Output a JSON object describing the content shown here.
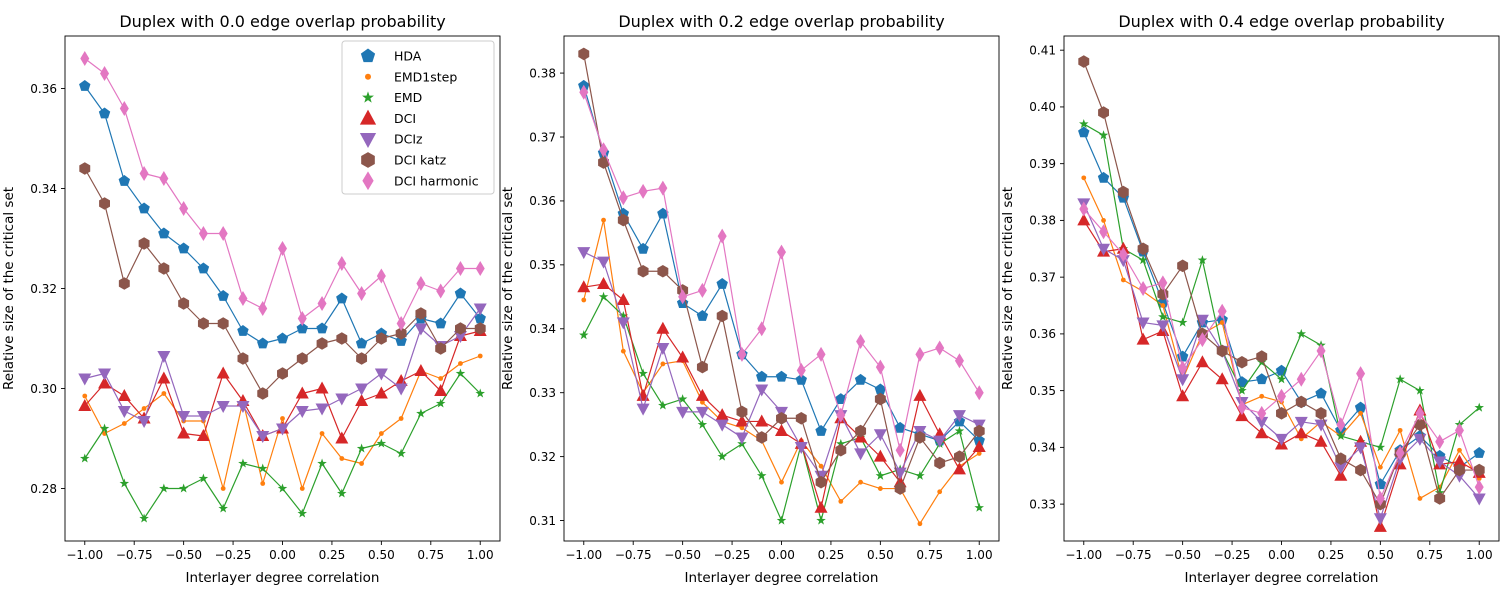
{
  "colors": {
    "HDA": "#1f77b4",
    "EMD1step": "#ff7f0e",
    "EMD": "#2ca02c",
    "DCI": "#d62728",
    "DCIz": "#9467bd",
    "DCI katz": "#8c564b",
    "DCI harmonic": "#e377c2"
  },
  "markers": {
    "HDA": "pentagon",
    "EMD1step": "dot",
    "EMD": "star",
    "DCI": "triangle-up",
    "DCIz": "triangle-down",
    "DCI katz": "hexagon",
    "DCI harmonic": "thin-diamond"
  },
  "chart_data": [
    {
      "type": "line",
      "title": "Duplex with 0.0 edge overlap probability",
      "xlabel": "Interlayer degree correlation",
      "ylabel": "Relative size of the critical set",
      "xlim": [
        -1.1,
        1.1
      ],
      "ylim": [
        0.2695,
        0.3705
      ],
      "xticks": [
        -1.0,
        -0.75,
        -0.5,
        -0.25,
        0.0,
        0.25,
        0.5,
        0.75,
        1.0
      ],
      "xtick_labels": [
        "−1.00",
        "−0.75",
        "−0.50",
        "−0.25",
        "0.00",
        "0.25",
        "0.50",
        "0.75",
        "1.00"
      ],
      "yticks": [
        0.28,
        0.3,
        0.32,
        0.34,
        0.36
      ],
      "ytick_labels": [
        "0.28",
        "0.30",
        "0.32",
        "0.34",
        "0.36"
      ],
      "legend": "upper right",
      "x": [
        -1.0,
        -0.9,
        -0.8,
        -0.7,
        -0.6,
        -0.5,
        -0.4,
        -0.3,
        -0.2,
        -0.1,
        0.0,
        0.1,
        0.2,
        0.3,
        0.4,
        0.5,
        0.6,
        0.7,
        0.8,
        0.9,
        1.0
      ],
      "series": [
        {
          "name": "HDA",
          "values": [
            0.3605,
            0.355,
            0.3415,
            0.336,
            0.331,
            0.328,
            0.324,
            0.3185,
            0.3115,
            0.309,
            0.31,
            0.312,
            0.312,
            0.318,
            0.309,
            0.311,
            0.3095,
            0.314,
            0.313,
            0.319,
            0.314
          ]
        },
        {
          "name": "EMD1step",
          "values": [
            0.2985,
            0.291,
            0.293,
            0.296,
            0.299,
            0.2935,
            0.2935,
            0.28,
            0.2975,
            0.281,
            0.294,
            0.28,
            0.291,
            0.286,
            0.285,
            0.291,
            0.294,
            0.3035,
            0.302,
            0.305,
            0.3065
          ]
        },
        {
          "name": "EMD",
          "values": [
            0.286,
            0.292,
            0.281,
            0.274,
            0.28,
            0.28,
            0.282,
            0.276,
            0.285,
            0.284,
            0.28,
            0.275,
            0.285,
            0.279,
            0.288,
            0.289,
            0.287,
            0.295,
            0.297,
            0.303,
            0.299
          ]
        },
        {
          "name": "DCI",
          "values": [
            0.2965,
            0.301,
            0.2985,
            0.294,
            0.302,
            0.291,
            0.2905,
            0.303,
            0.2975,
            0.2905,
            0.292,
            0.299,
            0.3,
            0.29,
            0.2975,
            0.299,
            0.3015,
            0.3035,
            0.2995,
            0.3105,
            0.3115
          ]
        },
        {
          "name": "DCIz",
          "values": [
            0.302,
            0.303,
            0.2955,
            0.2935,
            0.3065,
            0.2945,
            0.2945,
            0.2965,
            0.2965,
            0.2905,
            0.292,
            0.2955,
            0.296,
            0.298,
            0.3,
            0.303,
            0.3,
            0.312,
            0.3085,
            0.3105,
            0.316
          ]
        },
        {
          "name": "DCI katz",
          "values": [
            0.344,
            0.337,
            0.321,
            0.329,
            0.324,
            0.317,
            0.313,
            0.313,
            0.306,
            0.299,
            0.303,
            0.306,
            0.309,
            0.31,
            0.306,
            0.31,
            0.311,
            0.315,
            0.308,
            0.312,
            0.312
          ]
        },
        {
          "name": "DCI harmonic",
          "values": [
            0.366,
            0.363,
            0.356,
            0.343,
            0.342,
            0.336,
            0.331,
            0.331,
            0.318,
            0.316,
            0.328,
            0.314,
            0.317,
            0.325,
            0.319,
            0.3225,
            0.313,
            0.321,
            0.3195,
            0.324,
            0.324
          ]
        }
      ]
    },
    {
      "type": "line",
      "title": "Duplex with 0.2 edge overlap probability",
      "xlabel": "Interlayer degree correlation",
      "ylabel": "Relative size of the critical set",
      "xlim": [
        -1.1,
        1.1
      ],
      "ylim": [
        0.3068,
        0.3858
      ],
      "xticks": [
        -1.0,
        -0.75,
        -0.5,
        -0.25,
        0.0,
        0.25,
        0.5,
        0.75,
        1.0
      ],
      "xtick_labels": [
        "−1.00",
        "−0.75",
        "−0.50",
        "−0.25",
        "0.00",
        "0.25",
        "0.50",
        "0.75",
        "1.00"
      ],
      "yticks": [
        0.31,
        0.32,
        0.33,
        0.34,
        0.35,
        0.36,
        0.37,
        0.38
      ],
      "ytick_labels": [
        "0.31",
        "0.32",
        "0.33",
        "0.34",
        "0.35",
        "0.36",
        "0.37",
        "0.38"
      ],
      "x": [
        -1.0,
        -0.9,
        -0.8,
        -0.7,
        -0.6,
        -0.5,
        -0.4,
        -0.3,
        -0.2,
        -0.1,
        0.0,
        0.1,
        0.2,
        0.3,
        0.4,
        0.5,
        0.6,
        0.7,
        0.8,
        0.9,
        1.0
      ],
      "series": [
        {
          "name": "HDA",
          "values": [
            0.378,
            0.3675,
            0.358,
            0.3525,
            0.358,
            0.344,
            0.342,
            0.347,
            0.336,
            0.3325,
            0.3325,
            0.332,
            0.324,
            0.329,
            0.332,
            0.3305,
            0.3245,
            0.3235,
            0.3225,
            0.3255,
            0.3225
          ]
        },
        {
          "name": "EMD1step",
          "values": [
            0.3445,
            0.357,
            0.3365,
            0.33,
            0.3345,
            0.335,
            0.3285,
            0.3255,
            0.3245,
            0.3225,
            0.316,
            0.3225,
            0.3185,
            0.313,
            0.316,
            0.315,
            0.315,
            0.3095,
            0.3145,
            0.3185,
            0.3205
          ]
        },
        {
          "name": "EMD",
          "values": [
            0.339,
            0.345,
            0.342,
            0.333,
            0.328,
            0.329,
            0.325,
            0.32,
            0.322,
            0.317,
            0.31,
            0.322,
            0.31,
            0.322,
            0.323,
            0.317,
            0.318,
            0.317,
            0.322,
            0.324,
            0.312
          ]
        },
        {
          "name": "DCI",
          "values": [
            0.3465,
            0.347,
            0.3445,
            0.3295,
            0.34,
            0.3355,
            0.3295,
            0.3265,
            0.3255,
            0.3255,
            0.324,
            0.322,
            0.312,
            0.326,
            0.323,
            0.32,
            0.316,
            0.3295,
            0.3235,
            0.318,
            0.3215
          ]
        },
        {
          "name": "DCIz",
          "values": [
            0.352,
            0.3505,
            0.341,
            0.3275,
            0.337,
            0.327,
            0.327,
            0.325,
            0.323,
            0.3305,
            0.327,
            0.3215,
            0.317,
            0.3265,
            0.3205,
            0.3235,
            0.3175,
            0.324,
            0.3225,
            0.3265,
            0.325
          ]
        },
        {
          "name": "DCI katz",
          "values": [
            0.383,
            0.366,
            0.357,
            0.349,
            0.349,
            0.346,
            0.334,
            0.342,
            0.327,
            0.323,
            0.326,
            0.326,
            0.316,
            0.321,
            0.324,
            0.329,
            0.315,
            0.323,
            0.319,
            0.32,
            0.324
          ]
        },
        {
          "name": "DCI harmonic",
          "values": [
            0.377,
            0.368,
            0.3605,
            0.3615,
            0.362,
            0.345,
            0.346,
            0.3545,
            0.336,
            0.34,
            0.352,
            0.3335,
            0.336,
            0.3265,
            0.338,
            0.334,
            0.321,
            0.336,
            0.337,
            0.335,
            0.33
          ]
        }
      ]
    },
    {
      "type": "line",
      "title": "Duplex with 0.4 edge overlap probability",
      "xlabel": "Interlayer degree correlation",
      "ylabel": "Relative size of the critical set",
      "xlim": [
        -1.1,
        1.1
      ],
      "ylim": [
        0.3235,
        0.4125
      ],
      "xticks": [
        -1.0,
        -0.75,
        -0.5,
        -0.25,
        0.0,
        0.25,
        0.5,
        0.75,
        1.0
      ],
      "xtick_labels": [
        "−1.00",
        "−0.75",
        "−0.50",
        "−0.25",
        "0.00",
        "0.25",
        "0.50",
        "0.75",
        "1.00"
      ],
      "yticks": [
        0.33,
        0.34,
        0.35,
        0.36,
        0.37,
        0.38,
        0.39,
        0.4,
        0.41
      ],
      "ytick_labels": [
        "0.33",
        "0.34",
        "0.35",
        "0.36",
        "0.37",
        "0.38",
        "0.39",
        "0.40",
        "0.41"
      ],
      "x": [
        -1.0,
        -0.9,
        -0.8,
        -0.7,
        -0.6,
        -0.5,
        -0.4,
        -0.3,
        -0.2,
        -0.1,
        0.0,
        0.1,
        0.2,
        0.3,
        0.4,
        0.5,
        0.6,
        0.7,
        0.8,
        0.9,
        1.0
      ],
      "series": [
        {
          "name": "HDA",
          "values": [
            0.3955,
            0.3875,
            0.384,
            0.3745,
            0.3655,
            0.356,
            0.362,
            0.3625,
            0.3515,
            0.352,
            0.3535,
            0.348,
            0.3495,
            0.343,
            0.347,
            0.3335,
            0.3395,
            0.342,
            0.3385,
            0.3365,
            0.339
          ]
        },
        {
          "name": "EMD1step",
          "values": [
            0.3875,
            0.38,
            0.3695,
            0.3675,
            0.365,
            0.352,
            0.36,
            0.362,
            0.3475,
            0.349,
            0.348,
            0.3415,
            0.3445,
            0.342,
            0.346,
            0.3365,
            0.343,
            0.331,
            0.333,
            0.3395,
            0.3345
          ]
        },
        {
          "name": "EMD",
          "values": [
            0.397,
            0.395,
            0.375,
            0.373,
            0.363,
            0.362,
            0.373,
            0.357,
            0.35,
            0.355,
            0.352,
            0.36,
            0.358,
            0.342,
            0.341,
            0.34,
            0.352,
            0.35,
            0.332,
            0.344,
            0.347
          ]
        },
        {
          "name": "DCI",
          "values": [
            0.38,
            0.3745,
            0.375,
            0.359,
            0.3605,
            0.349,
            0.355,
            0.352,
            0.3455,
            0.3425,
            0.3405,
            0.3425,
            0.341,
            0.335,
            0.341,
            0.326,
            0.337,
            0.3465,
            0.337,
            0.3375,
            0.3355
          ]
        },
        {
          "name": "DCIz",
          "values": [
            0.383,
            0.375,
            0.373,
            0.362,
            0.3615,
            0.352,
            0.3625,
            0.357,
            0.348,
            0.3445,
            0.3415,
            0.3445,
            0.344,
            0.3365,
            0.34,
            0.3275,
            0.338,
            0.3415,
            0.3375,
            0.335,
            0.331
          ]
        },
        {
          "name": "DCI katz",
          "values": [
            0.408,
            0.399,
            0.385,
            0.375,
            0.367,
            0.372,
            0.36,
            0.357,
            0.355,
            0.356,
            0.346,
            0.348,
            0.346,
            0.338,
            0.336,
            0.33,
            0.339,
            0.344,
            0.331,
            0.336,
            0.336
          ]
        },
        {
          "name": "DCI harmonic",
          "values": [
            0.382,
            0.378,
            0.374,
            0.368,
            0.369,
            0.354,
            0.359,
            0.364,
            0.347,
            0.346,
            0.349,
            0.352,
            0.357,
            0.344,
            0.353,
            0.331,
            0.339,
            0.346,
            0.341,
            0.343,
            0.333
          ]
        }
      ]
    }
  ]
}
